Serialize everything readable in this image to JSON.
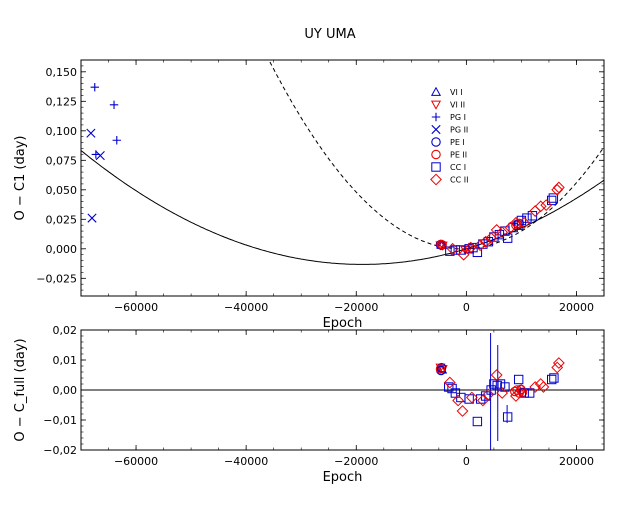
{
  "chart_data": [
    {
      "type": "scatter",
      "title": "UY UMA",
      "xlabel": "Epoch",
      "ylabel": "O − C1 (day)",
      "xlim": [
        -70000,
        25000
      ],
      "ylim": [
        -0.04,
        0.16
      ],
      "xticks": [
        -60000,
        -40000,
        -20000,
        0,
        20000
      ],
      "xtick_labels": [
        "−60000",
        "−40000",
        "−20000",
        "0",
        "20000"
      ],
      "yticks": [
        -0.025,
        0.0,
        0.025,
        0.05,
        0.075,
        0.1,
        0.125,
        0.15
      ],
      "ytick_labels": [
        "−0,025",
        "0,000",
        "0,025",
        "0,050",
        "0,075",
        "0,100",
        "0,125",
        "0,150"
      ],
      "legend_position": "upper-center",
      "grid": false,
      "series": [
        {
          "name": "VI I",
          "marker": "triangle-up",
          "color": "#0000cc",
          "points": [
            [
              -4600,
              0.0035
            ],
            [
              -4400,
              0.0032
            ]
          ]
        },
        {
          "name": "VI II",
          "marker": "triangle-down",
          "color": "#ee0000",
          "points": [
            [
              -4700,
              0.003
            ],
            [
              -4300,
              0.0028
            ],
            [
              -200,
              -0.001
            ],
            [
              300,
              -0.0005
            ]
          ]
        },
        {
          "name": "PG I",
          "marker": "plus",
          "color": "#0000cc",
          "points": [
            [
              -67500,
              0.137
            ],
            [
              -64000,
              0.122
            ],
            [
              -63500,
              0.092
            ],
            [
              -67300,
              0.08
            ]
          ]
        },
        {
          "name": "PG II",
          "marker": "x",
          "color": "#0000cc",
          "points": [
            [
              -68200,
              0.098
            ],
            [
              -66500,
              0.079
            ],
            [
              -68000,
              0.026
            ]
          ]
        },
        {
          "name": "PE I",
          "marker": "circle",
          "color": "#0000cc",
          "points": [
            [
              -4700,
              0.0035
            ],
            [
              -4500,
              0.003
            ]
          ]
        },
        {
          "name": "PE II",
          "marker": "circle",
          "color": "#ee0000",
          "points": [
            [
              -4600,
              0.0038
            ],
            [
              -4400,
              0.0033
            ],
            [
              9000,
              0.02
            ],
            [
              9300,
              0.021
            ],
            [
              9600,
              0.0215
            ]
          ]
        },
        {
          "name": "CC I",
          "marker": "square",
          "color": "#0000cc",
          "points": [
            [
              -3000,
              -0.002
            ],
            [
              -2000,
              -0.001
            ],
            [
              -1000,
              -0.001
            ],
            [
              500,
              0.0
            ],
            [
              1200,
              0.001
            ],
            [
              2000,
              -0.003
            ],
            [
              3000,
              0.004
            ],
            [
              4000,
              0.006
            ],
            [
              5000,
              0.01
            ],
            [
              6000,
              0.012
            ],
            [
              7000,
              0.015
            ],
            [
              7500,
              0.009
            ],
            [
              8500,
              0.018
            ],
            [
              9500,
              0.02
            ],
            [
              10000,
              0.024
            ],
            [
              11000,
              0.026
            ],
            [
              12000,
              0.028
            ],
            [
              15500,
              0.041
            ],
            [
              15800,
              0.043
            ]
          ]
        },
        {
          "name": "CC II",
          "marker": "diamond",
          "color": "#ee0000",
          "points": [
            [
              -2500,
              0.0
            ],
            [
              -500,
              -0.005
            ],
            [
              800,
              0.001
            ],
            [
              2500,
              0.003
            ],
            [
              3500,
              0.006
            ],
            [
              4500,
              0.009
            ],
            [
              5500,
              0.016
            ],
            [
              6500,
              0.014
            ],
            [
              8000,
              0.018
            ],
            [
              9000,
              0.022
            ],
            [
              10500,
              0.022
            ],
            [
              12500,
              0.032
            ],
            [
              13500,
              0.036
            ],
            [
              14500,
              0.037
            ],
            [
              16500,
              0.05
            ],
            [
              16800,
              0.052
            ]
          ]
        }
      ],
      "curves": [
        {
          "style": "solid",
          "form": "quadratic",
          "coeffs": [
            0.0,
            1.4e-06,
            3.7e-11
          ]
        },
        {
          "style": "dashed",
          "form": "quadratic",
          "coeffs": [
            0.0,
            2e-07,
            1.3e-10
          ]
        }
      ]
    },
    {
      "type": "scatter",
      "title": "",
      "xlabel": "Epoch",
      "ylabel": "O − C_full (day)",
      "xlim": [
        -70000,
        25000
      ],
      "ylim": [
        -0.02,
        0.02
      ],
      "xticks": [
        -60000,
        -40000,
        -20000,
        0,
        20000
      ],
      "xtick_labels": [
        "−60000",
        "−40000",
        "−20000",
        "0",
        "20000"
      ],
      "yticks": [
        -0.02,
        -0.01,
        0.0,
        0.01,
        0.02
      ],
      "ytick_labels": [
        "−0,02",
        "−0,01",
        "0,00",
        "0,01",
        "0,02"
      ],
      "zero_line": true,
      "series": [
        {
          "name": "VI I",
          "marker": "triangle-up",
          "color": "#0000cc",
          "points": [
            [
              -4600,
              0.0072
            ],
            [
              -4400,
              0.0068
            ]
          ]
        },
        {
          "name": "VI II",
          "marker": "triangle-down",
          "color": "#ee0000",
          "points": [
            [
              -4700,
              0.0075
            ],
            [
              -4300,
              0.007
            ]
          ]
        },
        {
          "name": "PE I",
          "marker": "circle",
          "color": "#0000cc",
          "points": [
            [
              -4600,
              0.0065
            ],
            [
              -4500,
              0.0074
            ]
          ]
        },
        {
          "name": "PE II",
          "marker": "circle",
          "color": "#ee0000",
          "points": [
            [
              -4700,
              0.007
            ],
            [
              8800,
              -0.0005
            ],
            [
              9200,
              0.0
            ],
            [
              9600,
              -0.001
            ],
            [
              9900,
              0.0002
            ],
            [
              10200,
              -0.0008
            ]
          ]
        },
        {
          "name": "CC I",
          "marker": "square",
          "color": "#0000cc",
          "points": [
            [
              -3200,
              0.001
            ],
            [
              -2600,
              0.0005
            ],
            [
              -2000,
              -0.001
            ],
            [
              -1000,
              -0.0025
            ],
            [
              500,
              -0.003
            ],
            [
              2000,
              -0.0105
            ],
            [
              2600,
              -0.003
            ],
            [
              3500,
              -0.002
            ],
            [
              4500,
              0.0
            ],
            [
              5000,
              0.002
            ],
            [
              5600,
              0.0015
            ],
            [
              6200,
              0.002
            ],
            [
              7000,
              0.001
            ],
            [
              7500,
              -0.009
            ],
            [
              9500,
              0.0035
            ],
            [
              10500,
              -0.001
            ],
            [
              11500,
              -0.001
            ],
            [
              15500,
              0.0035
            ],
            [
              15900,
              0.004
            ]
          ]
        },
        {
          "name": "CC II",
          "marker": "diamond",
          "color": "#ee0000",
          "points": [
            [
              -3000,
              0.0025
            ],
            [
              -1500,
              -0.0035
            ],
            [
              -700,
              -0.007
            ],
            [
              1000,
              -0.0025
            ],
            [
              3000,
              -0.0035
            ],
            [
              4000,
              -0.0015
            ],
            [
              5500,
              0.005
            ],
            [
              6500,
              -0.001
            ],
            [
              9000,
              -0.002
            ],
            [
              10000,
              0.0
            ],
            [
              12500,
              0.001
            ],
            [
              13500,
              0.002
            ],
            [
              14000,
              0.001
            ],
            [
              16500,
              0.0075
            ],
            [
              16800,
              0.009
            ]
          ]
        }
      ],
      "error_bars": [
        {
          "x": 4400,
          "y": -0.001,
          "err": 0.02
        },
        {
          "x": 5700,
          "y": -0.001,
          "err": 0.016
        },
        {
          "x": 7400,
          "y": -0.008,
          "err": 0.003
        }
      ]
    }
  ]
}
